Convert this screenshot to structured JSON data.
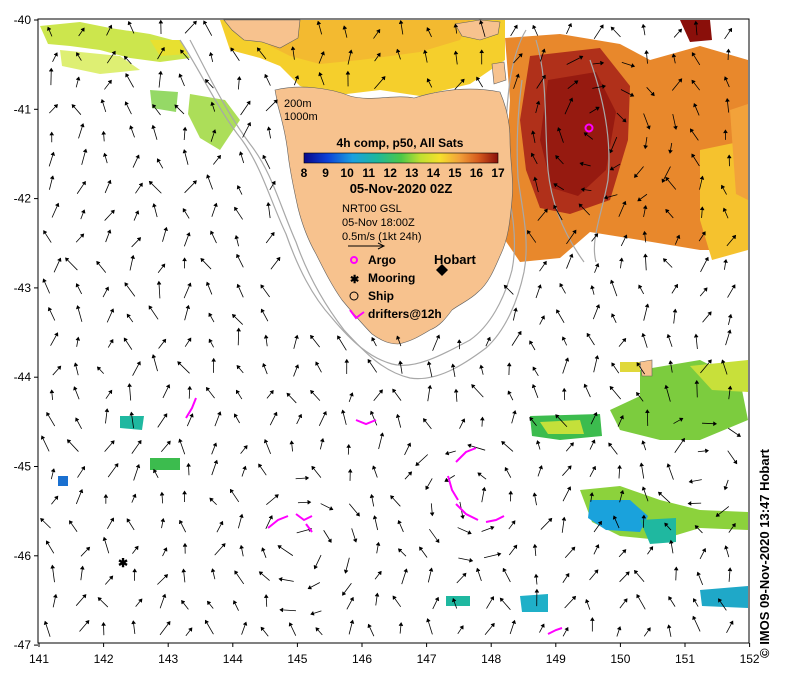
{
  "map": {
    "lon_ticks": [
      "141",
      "142",
      "143",
      "144",
      "145",
      "146",
      "147",
      "148",
      "149",
      "150",
      "151",
      "152"
    ],
    "lat_ticks": [
      "-40",
      "-41",
      "-42",
      "-43",
      "-44",
      "-45",
      "-46",
      "-47"
    ],
    "contour_labels": [
      "200m",
      "1000m"
    ],
    "title": "4h comp, p50, All Sats",
    "colorbar_ticks": [
      "8",
      "9",
      "10",
      "11",
      "12",
      "13",
      "14",
      "15",
      "16",
      "17"
    ],
    "date": "05-Nov-2020 02Z",
    "current_product": "NRT00 GSL",
    "current_time": "05-Nov 18:00Z",
    "scale_label": "0.5m/s (1kt 24h)",
    "city": "Hobart",
    "legend": [
      {
        "label": "Argo",
        "icon": "argo-circle-icon",
        "color": "#ff00ff"
      },
      {
        "label": "Mooring",
        "icon": "mooring-star-icon",
        "color": "#000000"
      },
      {
        "label": "Ship",
        "icon": "ship-circle-icon",
        "color": "#000000"
      },
      {
        "label": "drifters@12h",
        "icon": "drifter-arrow-icon",
        "color": "#ff00ff"
      }
    ],
    "credit": "© IMOS 09-Nov-2020 13:47 Hobart",
    "colors": {
      "land": "#f7c28e",
      "warm": "#b01a12",
      "cool": "#1f9bd8",
      "drifter": "#ff00ff",
      "shelf": "#a8a8a8"
    }
  }
}
